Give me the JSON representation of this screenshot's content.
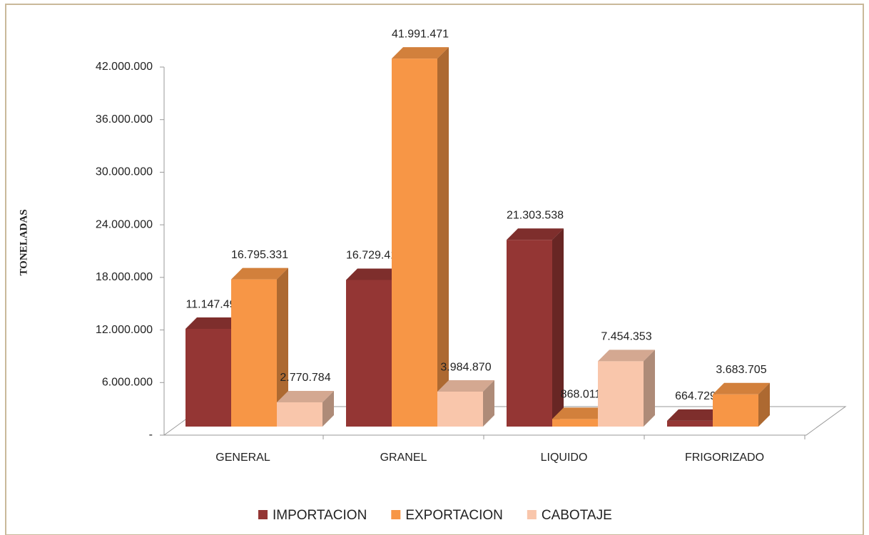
{
  "chart_data": {
    "type": "bar3d",
    "y_label": "TONELADAS",
    "categories": [
      "GENERAL",
      "GRANEL",
      "LIQUIDO",
      "FRIGORIZADO"
    ],
    "series": [
      {
        "name": "IMPORTACION",
        "color": "#943634",
        "values": [
          11147490,
          16729410,
          21303538,
          664729
        ],
        "value_labels": [
          "11.147.490",
          "16.729.410",
          "21.303.538",
          "664.729"
        ]
      },
      {
        "name": "EXPORTACION",
        "color": "#f79646",
        "values": [
          16795331,
          41991471,
          868011,
          3683705
        ],
        "value_labels": [
          "16.795.331",
          "41.991.471",
          "868.011",
          "3.683.705"
        ]
      },
      {
        "name": "CABOTAJE",
        "color": "#f9c6ab",
        "values": [
          2770784,
          3984870,
          7454353,
          null
        ],
        "value_labels": [
          "2.770.784",
          "3.984.870",
          "7.454.353",
          null
        ]
      }
    ],
    "ylim": [
      0,
      42000000
    ],
    "yticks": [
      {
        "value": 0,
        "label": "-"
      },
      {
        "value": 6000000,
        "label": "6.000.000"
      },
      {
        "value": 12000000,
        "label": "12.000.000"
      },
      {
        "value": 18000000,
        "label": "18.000.000"
      },
      {
        "value": 24000000,
        "label": "24.000.000"
      },
      {
        "value": 30000000,
        "label": "30.000.000"
      },
      {
        "value": 36000000,
        "label": "36.000.000"
      },
      {
        "value": 42000000,
        "label": "42.000.000"
      }
    ],
    "legend": "bottom"
  }
}
